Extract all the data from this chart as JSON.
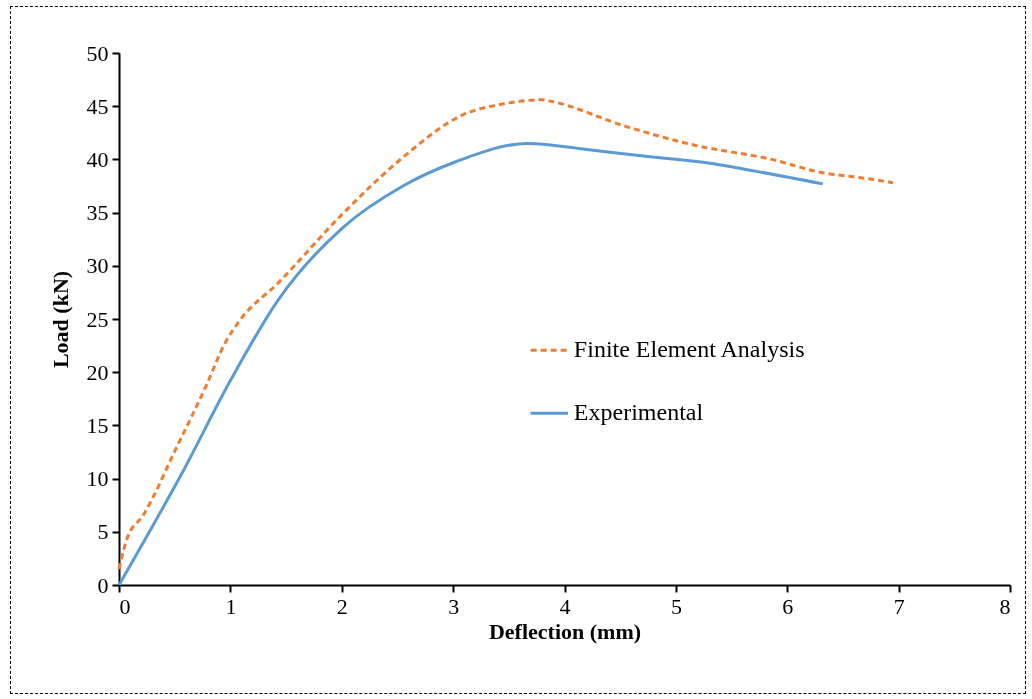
{
  "chart_data": {
    "type": "line",
    "xlabel": "Deflection (mm)",
    "ylabel": "Load (kN)",
    "xlim": [
      0,
      8
    ],
    "ylim": [
      0,
      50
    ],
    "xticks": [
      0,
      1,
      2,
      3,
      4,
      5,
      6,
      7,
      8
    ],
    "yticks": [
      0,
      5,
      10,
      15,
      20,
      25,
      30,
      35,
      40,
      45,
      50
    ],
    "grid": false,
    "legend": "right",
    "marker": "none",
    "series": [
      {
        "name": "Finite Element Analysis",
        "color": "#ed7d31",
        "line_style": "dashed",
        "x": [
          0,
          0.07,
          0.22,
          0.52,
          0.79,
          0.95,
          1.08,
          1.43,
          2.0,
          2.55,
          3.09,
          3.44,
          3.8,
          3.86,
          4.55,
          5.14,
          5.86,
          6.34,
          6.57,
          6.9,
          6.95
        ],
        "values": [
          1.5,
          4.3,
          6.6,
          13.0,
          18.9,
          22.7,
          24.8,
          28.4,
          34.8,
          40.2,
          44.2,
          45.2,
          45.6,
          45.5,
          43.1,
          41.4,
          40.0,
          38.7,
          38.4,
          37.9,
          37.8
        ]
      },
      {
        "name": "Experimental",
        "color": "#5b9bd5",
        "line_style": "solid",
        "x": [
          0,
          0.57,
          1.01,
          1.43,
          2.0,
          2.55,
          3.03,
          3.67,
          4.22,
          4.81,
          5.26,
          5.71,
          6.32
        ],
        "values": [
          0,
          10.6,
          19.4,
          26.8,
          33.5,
          37.5,
          39.8,
          41.5,
          40.9,
          40.2,
          39.7,
          38.9,
          37.7
        ]
      }
    ]
  }
}
